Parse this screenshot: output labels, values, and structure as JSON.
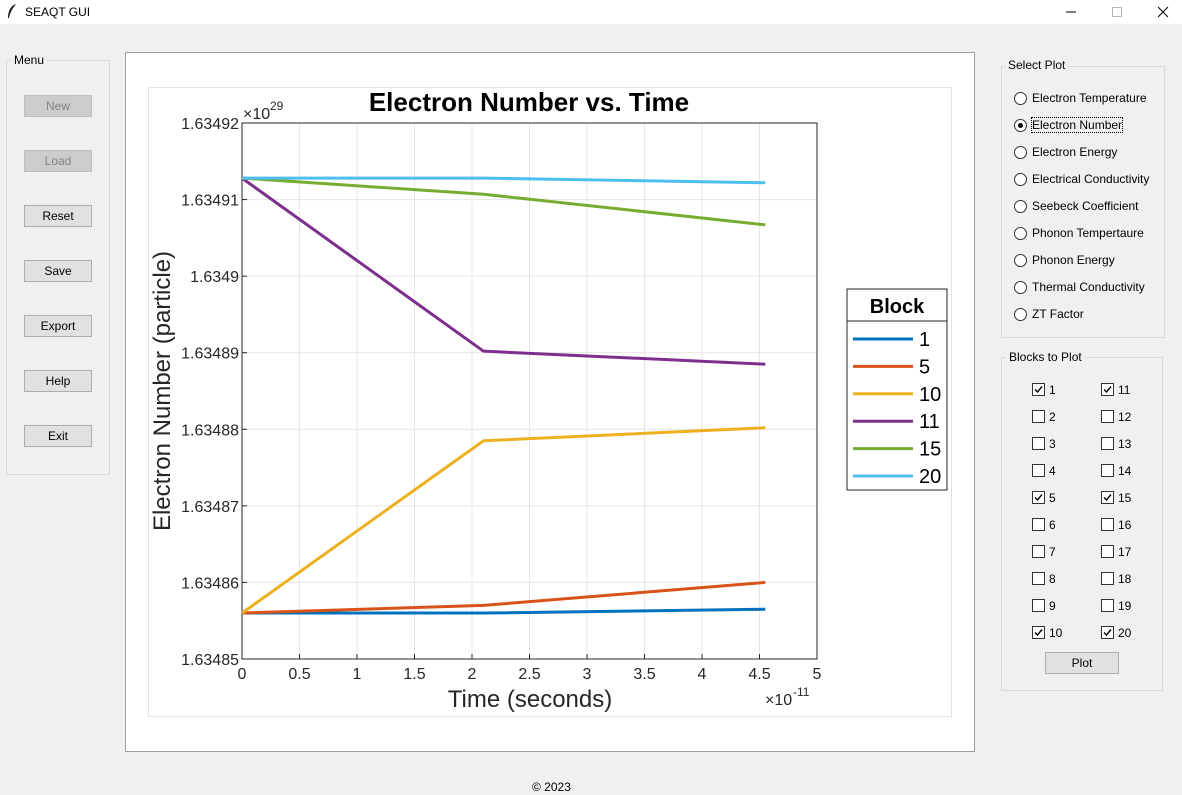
{
  "window": {
    "title": "SEAQT GUI"
  },
  "menu": {
    "label": "Menu",
    "buttons": [
      {
        "label": "New",
        "disabled": true
      },
      {
        "label": "Load",
        "disabled": true
      },
      {
        "label": "Reset",
        "disabled": false
      },
      {
        "label": "Save",
        "disabled": false
      },
      {
        "label": "Export",
        "disabled": false
      },
      {
        "label": "Help",
        "disabled": false
      },
      {
        "label": "Exit",
        "disabled": false
      }
    ]
  },
  "select_plot": {
    "label": "Select Plot",
    "selected": "Electron Number",
    "options": [
      "Electron Temperature",
      "Electron Number",
      "Electron Energy",
      "Electrical Conductivity",
      "Seebeck Coefficient",
      "Phonon Tempertaure",
      "Phonon Energy",
      "Thermal Conductivity",
      "ZT Factor"
    ]
  },
  "blocks_to_plot": {
    "label": "Blocks to Plot",
    "left_column": [
      {
        "label": "1",
        "checked": true
      },
      {
        "label": "2",
        "checked": false
      },
      {
        "label": "3",
        "checked": false
      },
      {
        "label": "4",
        "checked": false
      },
      {
        "label": "5",
        "checked": true
      },
      {
        "label": "6",
        "checked": false
      },
      {
        "label": "7",
        "checked": false
      },
      {
        "label": "8",
        "checked": false
      },
      {
        "label": "9",
        "checked": false
      },
      {
        "label": "10",
        "checked": true
      }
    ],
    "right_column": [
      {
        "label": "11",
        "checked": true
      },
      {
        "label": "12",
        "checked": false
      },
      {
        "label": "13",
        "checked": false
      },
      {
        "label": "14",
        "checked": false
      },
      {
        "label": "15",
        "checked": true
      },
      {
        "label": "16",
        "checked": false
      },
      {
        "label": "17",
        "checked": false
      },
      {
        "label": "18",
        "checked": false
      },
      {
        "label": "19",
        "checked": false
      },
      {
        "label": "20",
        "checked": true
      }
    ],
    "plot_button": "Plot"
  },
  "footer": {
    "text": "© 2023"
  },
  "chart_data": {
    "type": "line",
    "title": "Electron Number vs. Time",
    "xlabel": "Time (seconds)",
    "ylabel": "Electron Number (particle)",
    "x_exponent_label": "×10",
    "x_exponent": "-11",
    "y_exponent_label": "×10",
    "y_exponent": "29",
    "xlim": [
      0,
      5
    ],
    "ylim": [
      1.63485,
      1.63492
    ],
    "xticks": [
      "0",
      "0.5",
      "1",
      "1.5",
      "2",
      "2.5",
      "3",
      "3.5",
      "4",
      "4.5",
      "5"
    ],
    "yticks": [
      "1.63485",
      "1.63486",
      "1.63487",
      "1.63488",
      "1.63489",
      "1.6349",
      "1.63491",
      "1.63492"
    ],
    "grid": true,
    "legend_title": "Block",
    "legend_position": "outside-right",
    "x": [
      0,
      2.1,
      4.55
    ],
    "series": [
      {
        "name": "1",
        "color": "#0072bd",
        "values": [
          1.634856,
          1.634856,
          1.6348565
        ]
      },
      {
        "name": "5",
        "color": "#d95319",
        "values": [
          1.634856,
          1.634857,
          1.63486
        ]
      },
      {
        "name": "10",
        "color": "#edb120",
        "values": [
          1.634856,
          1.6348785,
          1.6348802
        ]
      },
      {
        "name": "11",
        "color": "#7e2f8e",
        "values": [
          1.6349128,
          1.6348902,
          1.6348885
        ]
      },
      {
        "name": "15",
        "color": "#77ac30",
        "values": [
          1.6349128,
          1.6349107,
          1.6349067
        ]
      },
      {
        "name": "20",
        "color": "#4dbeee",
        "values": [
          1.6349128,
          1.6349128,
          1.6349122
        ]
      }
    ]
  }
}
